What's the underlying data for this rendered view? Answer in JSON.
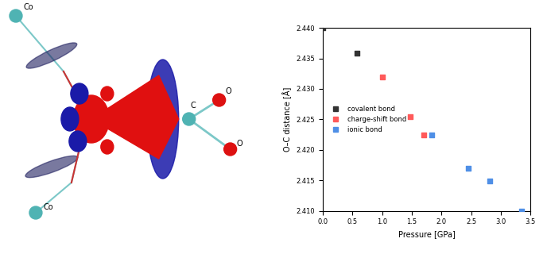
{
  "chart_data": {
    "type": "scatter",
    "x_label": "Pressure [GPa]",
    "y_label": "O–C distance [Å]",
    "xlim": [
      0,
      3.5
    ],
    "xticks": [
      {
        "value": 0,
        "label": "0.0"
      },
      {
        "value": 0.5,
        "label": "0.5"
      },
      {
        "value": 1,
        "label": "1.0"
      },
      {
        "value": 1.5,
        "label": "1.5"
      },
      {
        "value": 2,
        "label": "2.0"
      },
      {
        "value": 2.5,
        "label": "2.5"
      },
      {
        "value": 3,
        "label": "3.0"
      },
      {
        "value": 3.5,
        "label": "3.5"
      }
    ],
    "ylim": [
      2.41,
      2.44
    ],
    "yticks": [
      {
        "value": 2.41,
        "label": "2.410"
      },
      {
        "value": 2.415,
        "label": "2.415"
      },
      {
        "value": 2.42,
        "label": "2.420"
      },
      {
        "value": 2.425,
        "label": "2.425"
      },
      {
        "value": 2.43,
        "label": "2.430"
      },
      {
        "value": 2.435,
        "label": "2.435"
      },
      {
        "value": 2.44,
        "label": "2.440"
      }
    ],
    "legend": "center left",
    "marker": "square",
    "series": [
      {
        "name": "covalent bond",
        "color": "#333333",
        "x": [
          0.0,
          0.58
        ],
        "values": [
          2.44,
          2.4359
        ]
      },
      {
        "name": "charge-shift bond",
        "color": "#ff5a5a",
        "x": [
          1.01,
          1.47,
          1.7
        ],
        "values": [
          2.432,
          2.4255,
          2.4225
        ]
      },
      {
        "name": "ionic bond",
        "color": "#4f8fe6",
        "x": [
          1.84,
          2.45,
          2.81,
          3.35
        ],
        "values": [
          2.4225,
          2.417,
          2.4149,
          2.41
        ]
      }
    ]
  },
  "diagram": {
    "atoms": [
      "Co",
      "Co",
      "C",
      "O",
      "O"
    ]
  }
}
